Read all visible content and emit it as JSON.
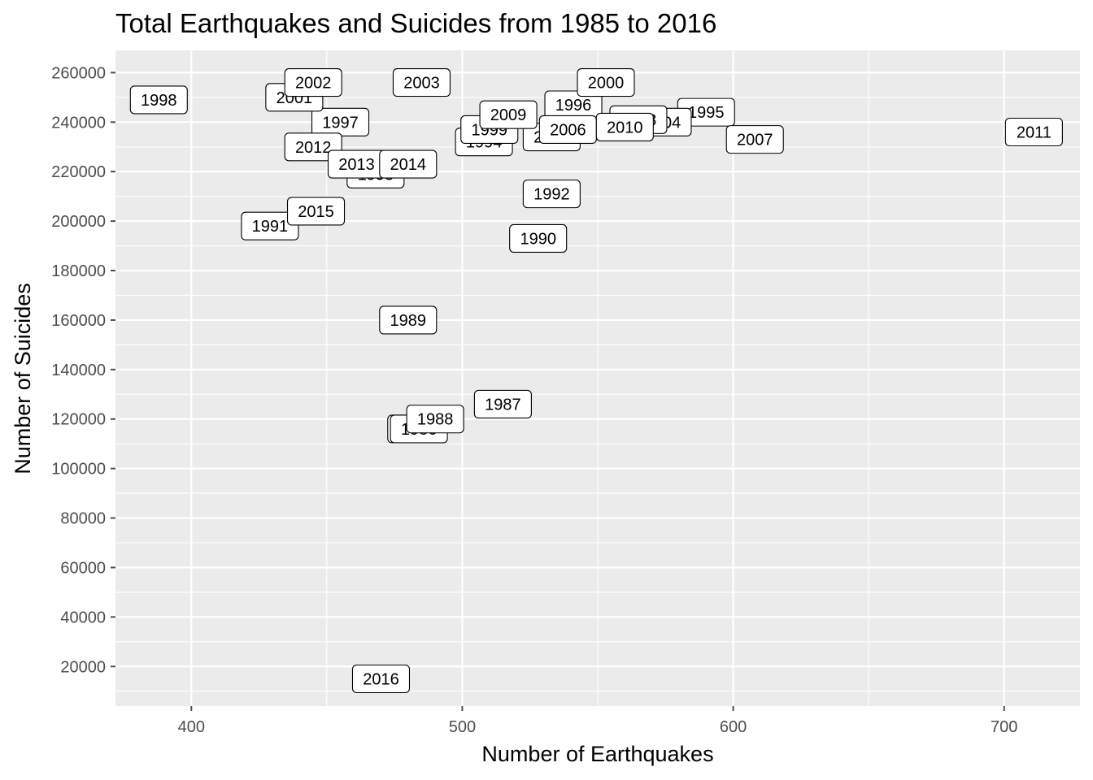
{
  "chart_data": {
    "type": "scatter",
    "title": "Total Earthquakes and Suicides from 1985 to 2016",
    "xlabel": "Number of Earthquakes",
    "ylabel": "Number of Suicides",
    "xlim": [
      372,
      728
    ],
    "ylim": [
      4000,
      269000
    ],
    "x_ticks": [
      400,
      500,
      600,
      700
    ],
    "y_ticks": [
      20000,
      40000,
      60000,
      80000,
      100000,
      120000,
      140000,
      160000,
      180000,
      200000,
      220000,
      240000,
      260000
    ],
    "grid": true,
    "panel_background": "#ebebeb",
    "grid_color": "#ffffff",
    "tick_color": "#4d4d4d",
    "points": [
      {
        "label": "1985",
        "x": 483,
        "y": 116000
      },
      {
        "label": "1986",
        "x": 484,
        "y": 116000
      },
      {
        "label": "1987",
        "x": 515,
        "y": 126000
      },
      {
        "label": "1988",
        "x": 490,
        "y": 120000
      },
      {
        "label": "1989",
        "x": 480,
        "y": 160000
      },
      {
        "label": "1990",
        "x": 528,
        "y": 193000
      },
      {
        "label": "1991",
        "x": 429,
        "y": 198000
      },
      {
        "label": "1992",
        "x": 533,
        "y": 211000
      },
      {
        "label": "1993",
        "x": 468,
        "y": 219000
      },
      {
        "label": "1994",
        "x": 508,
        "y": 232000
      },
      {
        "label": "1995",
        "x": 590,
        "y": 244000
      },
      {
        "label": "1996",
        "x": 541,
        "y": 247000
      },
      {
        "label": "1997",
        "x": 455,
        "y": 240000
      },
      {
        "label": "1998",
        "x": 388,
        "y": 249000
      },
      {
        "label": "1999",
        "x": 510,
        "y": 237000
      },
      {
        "label": "2000",
        "x": 553,
        "y": 256000
      },
      {
        "label": "2001",
        "x": 438,
        "y": 250000
      },
      {
        "label": "2002",
        "x": 445,
        "y": 256000
      },
      {
        "label": "2003",
        "x": 485,
        "y": 256000
      },
      {
        "label": "2004",
        "x": 574,
        "y": 240000
      },
      {
        "label": "2005",
        "x": 533,
        "y": 234000
      },
      {
        "label": "2006",
        "x": 539,
        "y": 237000
      },
      {
        "label": "2007",
        "x": 608,
        "y": 233000
      },
      {
        "label": "2008",
        "x": 565,
        "y": 241000
      },
      {
        "label": "2009",
        "x": 517,
        "y": 243000
      },
      {
        "label": "2010",
        "x": 560,
        "y": 238000
      },
      {
        "label": "2011",
        "x": 711,
        "y": 236000
      },
      {
        "label": "2012",
        "x": 445,
        "y": 230000
      },
      {
        "label": "2013",
        "x": 461,
        "y": 223000
      },
      {
        "label": "2014",
        "x": 480,
        "y": 223000
      },
      {
        "label": "2015",
        "x": 446,
        "y": 204000
      },
      {
        "label": "2016",
        "x": 470,
        "y": 15000
      }
    ]
  }
}
